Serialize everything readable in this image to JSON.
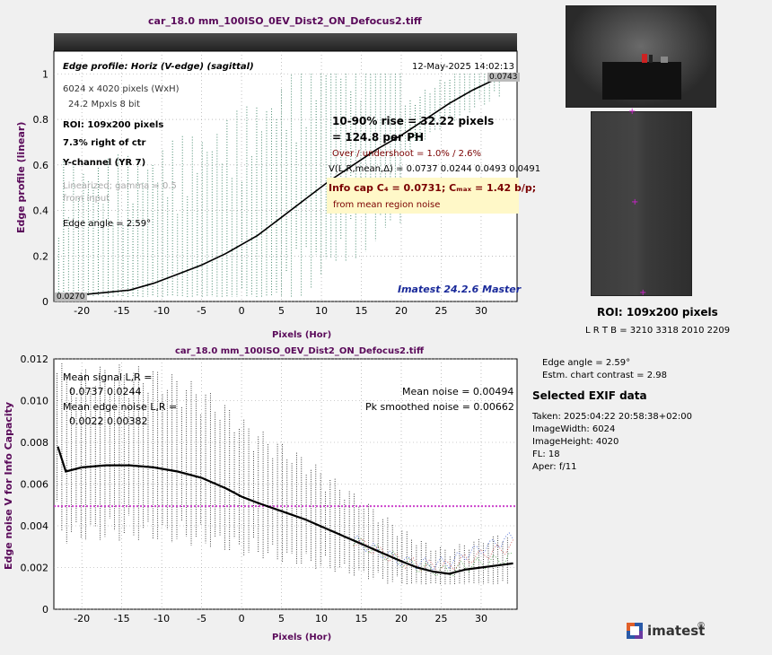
{
  "top_chart": {
    "title": "car_18.0 mm_100ISO_0EV_Dist2_ON_Defocus2.tiff",
    "ylabel": "Edge profile (linear)",
    "xlabel": "Pixels (Hor)",
    "info": {
      "heading": "Edge profile: Horiz (V-edge) (sagittal)",
      "date": "12-May-2025 14:02:13",
      "size": "6024 x 4020 pixels (WxH)",
      "mpix": "24.2 Mpxls   8 bit",
      "roi": "ROI:  109x200 pixels",
      "pos": "7.3% right of ctr",
      "channel": "Y-channel  (YR 7)",
      "linearized": "Linearized; gamma = 0.5",
      "from_input": "from input",
      "edge_angle": "Edge angle = 2.59°",
      "rise": "10-90% rise = 32.22 pixels",
      "per_ph": "=  124.8 per PH",
      "overshoot": "Over / undershoot =  1.0% /  2.6%",
      "vlr": "V(L,R,mean,Δ) = 0.0737  0.0244  0.0493  0.0491",
      "info_cap": "Info cap C₄ = 0.0731;  Cₘₐₓ = 1.42 b/p;",
      "from_mean": "from mean region noise",
      "watermark": "Imatest 24.2.6 Master",
      "left_val": "0.0270",
      "right_val": "0.0743"
    }
  },
  "bottom_chart": {
    "title": "car_18.0 mm_100ISO_0EV_Dist2_ON_Defocus2.tiff",
    "ylabel": "Edge noise V for Info Capacity",
    "xlabel": "Pixels (Hor)",
    "mean_signal_label": "Mean signal L,R =",
    "mean_signal_val": "0.0737  0.0244",
    "mean_edge_label": "Mean edge noise L,R =",
    "mean_edge_val": "0.0022  0.00382",
    "mean_noise": "Mean noise = 0.00494",
    "pk_noise": "Pk smoothed noise = 0.00662"
  },
  "chart_data": [
    {
      "type": "line",
      "title": "car_18.0 mm_100ISO_0EV_Dist2_ON_Defocus2.tiff",
      "xlabel": "Pixels (Hor)",
      "ylabel": "Edge profile (linear)",
      "xlim": [
        -23.5,
        34.5
      ],
      "ylim": [
        0,
        1.1
      ],
      "xticks": [
        -20,
        -15,
        -10,
        -5,
        0,
        5,
        10,
        15,
        20,
        25,
        30
      ],
      "yticks": [
        0,
        0.2,
        0.4,
        0.6,
        0.8,
        1
      ],
      "grid": true,
      "series": [
        {
          "x": [
            -23,
            -20,
            -17,
            -14,
            -11,
            -8,
            -5,
            -2,
            0,
            2,
            5,
            8,
            11,
            14,
            17,
            20,
            23,
            26,
            29,
            32,
            34
          ],
          "y": [
            0.03,
            0.03,
            0.04,
            0.05,
            0.08,
            0.12,
            0.16,
            0.21,
            0.25,
            0.29,
            0.37,
            0.45,
            0.53,
            0.6,
            0.67,
            0.73,
            0.8,
            0.87,
            0.93,
            0.98,
            1.0
          ]
        }
      ]
    },
    {
      "type": "line",
      "title": "car_18.0 mm_100ISO_0EV_Dist2_ON_Defocus2.tiff",
      "xlabel": "Pixels (Hor)",
      "ylabel": "Edge noise V for Info Capacity",
      "xlim": [
        -23.5,
        34.5
      ],
      "ylim": [
        0,
        0.012
      ],
      "xticks": [
        -20,
        -15,
        -10,
        -5,
        0,
        5,
        10,
        15,
        20,
        25,
        30
      ],
      "yticks": [
        0,
        0.002,
        0.004,
        0.006,
        0.008,
        0.01,
        0.012
      ],
      "grid": true,
      "mean_noise_line": 0.00494,
      "series": [
        {
          "x": [
            -23,
            -22,
            -20,
            -17,
            -14,
            -11,
            -8,
            -5,
            -2,
            0,
            2,
            5,
            8,
            11,
            14,
            17,
            20,
            22,
            24,
            26,
            28,
            30,
            32,
            34
          ],
          "y": [
            0.0078,
            0.0066,
            0.0068,
            0.0069,
            0.0069,
            0.0068,
            0.0066,
            0.0063,
            0.0058,
            0.0054,
            0.0051,
            0.0047,
            0.0043,
            0.0038,
            0.0033,
            0.0028,
            0.0023,
            0.002,
            0.0018,
            0.0017,
            0.0019,
            0.002,
            0.0021,
            0.0022
          ]
        }
      ]
    }
  ],
  "roi_panel": {
    "label": "ROI:  109x200 pixels",
    "coords": "L R  T B = 3210 3318  2010 2209"
  },
  "side_info": {
    "edge_angle": "Edge angle = 2.59°",
    "contrast": "Estm. chart contrast = 2.98",
    "exif_title": "Selected EXIF data",
    "exif": [
      "Taken: 2025:04:22 20:58:38+02:00",
      "ImageWidth:  6024",
      "ImageHeight:  4020",
      "FL:   18",
      "Aper:  f/11"
    ]
  },
  "logo": {
    "text": "imatest",
    "reg": "®"
  },
  "colors": {
    "title": "#5a0a5a",
    "mean_noise_line": "#cc44cc",
    "info_box": "#fff8c8",
    "watermark": "#1a2a9a"
  }
}
